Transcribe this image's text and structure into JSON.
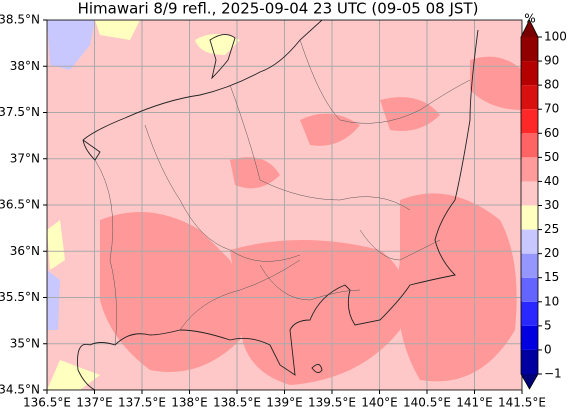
{
  "title": "Himawari 8/9 refl., 2025-09-04 23 UTC (09-05 08 JST)",
  "map": {
    "lon_range": [
      136.5,
      141.5
    ],
    "lat_range": [
      34.5,
      38.5
    ],
    "lon_ticks": [
      {
        "value": 136.5,
        "label": "136.5°E"
      },
      {
        "value": 137,
        "label": "137°E"
      },
      {
        "value": 137.5,
        "label": "137.5°E"
      },
      {
        "value": 138,
        "label": "138°E"
      },
      {
        "value": 138.5,
        "label": "138.5°E"
      },
      {
        "value": 139,
        "label": "139°E"
      },
      {
        "value": 139.5,
        "label": "139.5°E"
      },
      {
        "value": 140,
        "label": "140°E"
      },
      {
        "value": 140.5,
        "label": "140.5°E"
      },
      {
        "value": 141,
        "label": "141°E"
      },
      {
        "value": 141.5,
        "label": "141.5°E"
      }
    ],
    "lat_ticks": [
      {
        "value": 34.5,
        "label": "34.5°N"
      },
      {
        "value": 35,
        "label": "35°N"
      },
      {
        "value": 35.5,
        "label": "35.5°N"
      },
      {
        "value": 36,
        "label": "36°N"
      },
      {
        "value": 36.5,
        "label": "36.5°N"
      },
      {
        "value": 37,
        "label": "37°N"
      },
      {
        "value": 37.5,
        "label": "37.5°N"
      },
      {
        "value": 38,
        "label": "38°N"
      },
      {
        "value": 38.5,
        "label": "38.5°N"
      }
    ]
  },
  "colorbar": {
    "unit": "%",
    "levels": [
      {
        "value": -1,
        "label": "−1"
      },
      0,
      5,
      10,
      15,
      20,
      25,
      30,
      40,
      50,
      60,
      70,
      80,
      90,
      100
    ],
    "colors": [
      "#0000a0",
      "#0000e0",
      "#2828ff",
      "#6464ff",
      "#9696ff",
      "#c8c8ff",
      "#ffffc0",
      "#ffc8c8",
      "#ff9b9b",
      "#ff6464",
      "#ff2828",
      "#d81010",
      "#b40000",
      "#900000"
    ],
    "under_color": "#000078",
    "over_color": "#780000"
  }
}
